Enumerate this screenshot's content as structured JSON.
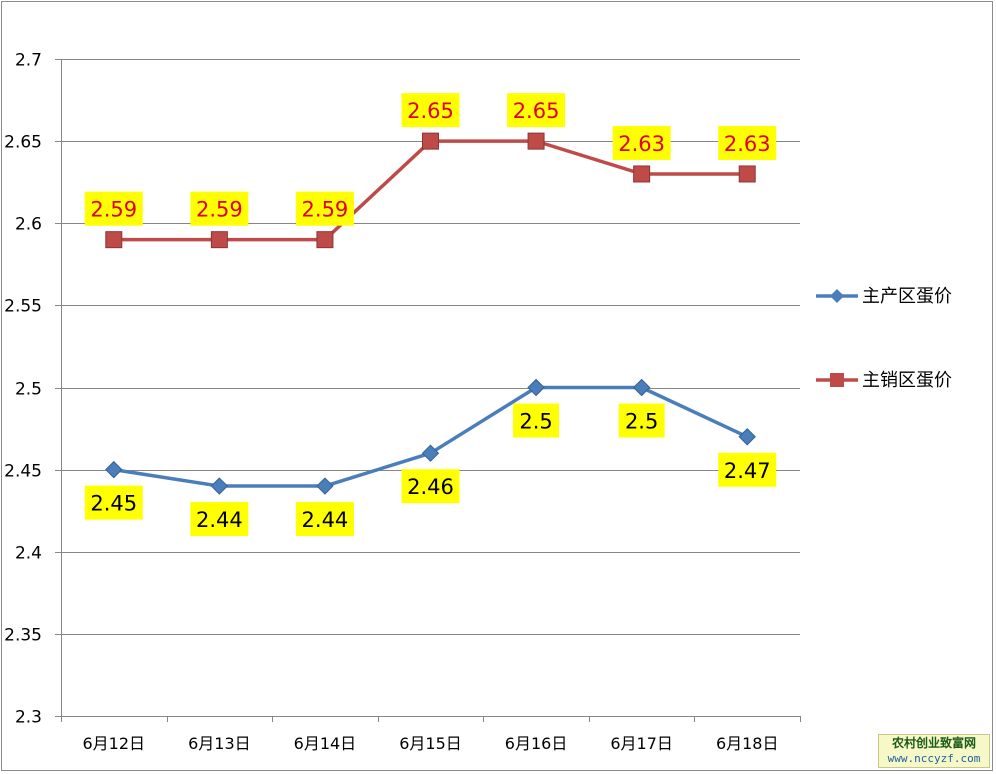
{
  "chart_data": {
    "type": "line",
    "categories": [
      "6月12日",
      "6月13日",
      "6月14日",
      "6月15日",
      "6月16日",
      "6月17日",
      "6月18日"
    ],
    "series": [
      {
        "name": "主产区蛋价",
        "values": [
          2.45,
          2.44,
          2.44,
          2.46,
          2.5,
          2.5,
          2.47
        ],
        "color": "#4a7ebb",
        "marker": "diamond",
        "label_position": "below"
      },
      {
        "name": "主销区蛋价",
        "values": [
          2.59,
          2.59,
          2.59,
          2.65,
          2.65,
          2.63,
          2.63
        ],
        "color": "#be4b48",
        "marker": "square",
        "label_position": "above"
      }
    ],
    "y_ticks": [
      "2.3",
      "2.35",
      "2.4",
      "2.45",
      "2.5",
      "2.55",
      "2.6",
      "2.65",
      "2.7"
    ],
    "ylim": [
      2.3,
      2.7
    ],
    "grid": true,
    "legend_position": "right",
    "data_label_background": "#ffff00",
    "data_label_colors": {
      "主产区蛋价": "#000000",
      "主销区蛋价": "#e0002a"
    }
  },
  "watermark": {
    "line1": "农村创业致富网",
    "line2": "www.nccyzf.com"
  }
}
